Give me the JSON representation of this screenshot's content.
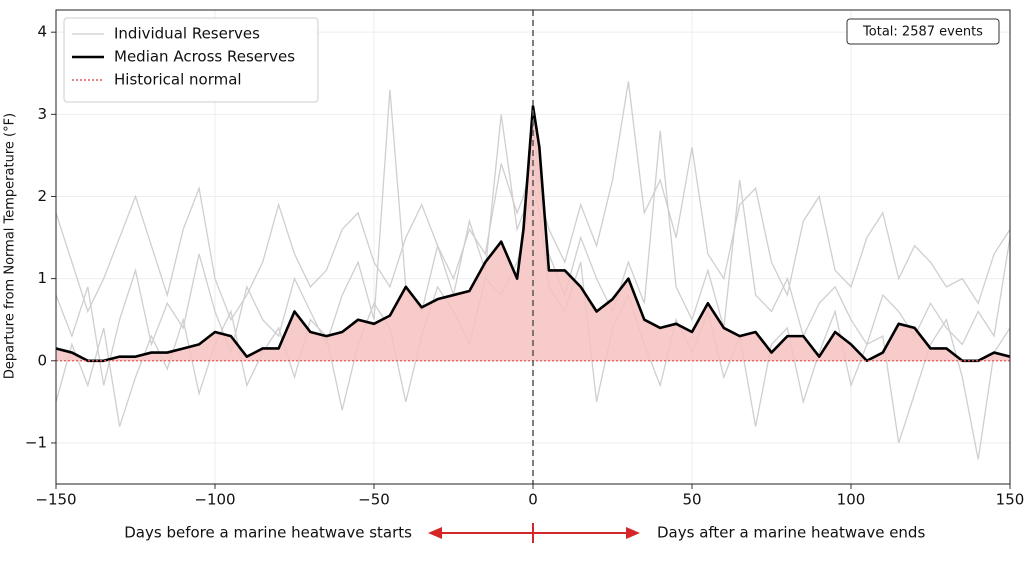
{
  "chart_data": {
    "type": "line",
    "ylabel": "Departure from Normal Temperature (°F)",
    "annotation": "Total: 2587 events",
    "xcaption_left": "Days before a marine heatwave starts",
    "xcaption_right": "Days after a marine heatwave ends",
    "arrow_color": "#d62728",
    "xlim": [
      -150,
      150
    ],
    "ylim": [
      -1.5,
      4.27
    ],
    "xticks": [
      {
        "value": -150,
        "label": "−150"
      },
      {
        "value": -100,
        "label": "−100"
      },
      {
        "value": -50,
        "label": "−50"
      },
      0,
      50,
      100,
      150
    ],
    "yticks": [
      {
        "value": -1,
        "label": "−1"
      },
      0,
      1,
      2,
      3,
      4
    ],
    "grid": true,
    "legend": "upper left",
    "vline": 0,
    "x": [
      -150,
      -145,
      -140,
      -135,
      -130,
      -125,
      -120,
      -115,
      -110,
      -105,
      -100,
      -95,
      -90,
      -85,
      -80,
      -75,
      -70,
      -65,
      -60,
      -55,
      -50,
      -45,
      -40,
      -35,
      -30,
      -25,
      -20,
      -15,
      -10,
      -5,
      -3,
      0,
      2,
      5,
      10,
      15,
      20,
      25,
      30,
      35,
      40,
      45,
      50,
      55,
      60,
      65,
      70,
      75,
      80,
      85,
      90,
      95,
      100,
      105,
      110,
      115,
      120,
      125,
      130,
      135,
      140,
      145,
      150
    ],
    "series": [
      {
        "name": "Individual Reserves",
        "color": "#cfcfcf",
        "values": [
          [
            1.8,
            1.2,
            0.6,
            1.0,
            1.5,
            2.0,
            1.4,
            0.8,
            1.6,
            2.1,
            1.0,
            0.5,
            0.8,
            1.2,
            1.9,
            1.3,
            0.9,
            1.1,
            1.6,
            1.8,
            1.2,
            0.9,
            1.5,
            1.9,
            1.4,
            1.0,
            1.6,
            1.3,
            2.4,
            1.8,
            2.0,
            2.5,
            2.0,
            1.6,
            1.2,
            1.9,
            1.4,
            2.2,
            3.4,
            1.8,
            2.2,
            1.5,
            2.6,
            1.3,
            1.0,
            1.9,
            2.1,
            1.2,
            0.8,
            1.7,
            2.0,
            1.1,
            0.9,
            1.5,
            1.8,
            1.0,
            1.4,
            1.2,
            0.9,
            1.0,
            0.7,
            1.3,
            1.6
          ],
          [
            -0.5,
            0.2,
            -0.3,
            0.4,
            -0.8,
            -0.2,
            0.3,
            -0.1,
            0.5,
            -0.4,
            0.2,
            0.6,
            -0.3,
            0.1,
            0.4,
            -0.2,
            0.5,
            0.3,
            -0.6,
            0.2,
            0.7,
            0.4,
            -0.5,
            0.3,
            0.9,
            0.6,
            0.2,
            1.0,
            0.8,
            1.2,
            1.5,
            2.2,
            1.8,
            0.9,
            0.6,
            1.2,
            -0.5,
            0.4,
            0.8,
            0.2,
            -0.3,
            0.5,
            0.1,
            0.6,
            -0.2,
            0.3,
            -0.8,
            0.2,
            0.4,
            -0.5,
            0.1,
            0.6,
            -0.3,
            0.2,
            0.3,
            -1.0,
            -0.4,
            0.2,
            0.5,
            -0.2,
            -1.2,
            0.1,
            0.4
          ],
          [
            0.8,
            0.3,
            0.9,
            -0.3,
            0.5,
            1.1,
            0.2,
            0.7,
            0.4,
            1.3,
            0.6,
            0.1,
            0.9,
            0.5,
            0.3,
            1.0,
            0.6,
            0.2,
            0.8,
            1.2,
            0.5,
            3.3,
            0.9,
            0.6,
            1.4,
            0.8,
            1.7,
            1.1,
            3.0,
            1.6,
            1.8,
            2.9,
            2.2,
            1.3,
            0.8,
            1.5,
            1.0,
            0.6,
            1.2,
            0.7,
            2.8,
            0.9,
            0.5,
            1.1,
            0.4,
            2.2,
            0.8,
            0.6,
            1.0,
            0.3,
            0.7,
            0.9,
            0.5,
            0.2,
            0.8,
            0.6,
            0.3,
            0.7,
            0.4,
            0.2,
            0.6,
            0.3,
            1.5
          ]
        ]
      },
      {
        "name": "Median Across Reserves",
        "color": "#000000",
        "fill": "#f7c2c2",
        "values": [
          0.15,
          0.1,
          0,
          0,
          0.05,
          0.05,
          0.1,
          0.1,
          0.15,
          0.2,
          0.35,
          0.3,
          0.05,
          0.15,
          0.15,
          0.6,
          0.35,
          0.3,
          0.35,
          0.5,
          0.45,
          0.55,
          0.9,
          0.65,
          0.75,
          0.8,
          0.85,
          1.2,
          1.45,
          1.0,
          1.6,
          3.1,
          2.6,
          1.1,
          1.1,
          0.9,
          0.6,
          0.75,
          1.0,
          0.5,
          0.4,
          0.45,
          0.35,
          0.7,
          0.4,
          0.3,
          0.35,
          0.1,
          0.3,
          0.3,
          0.05,
          0.35,
          0.2,
          0,
          0.1,
          0.45,
          0.4,
          0.15,
          0.15,
          0,
          0,
          0.1,
          0.05
        ]
      },
      {
        "name": "Historical normal",
        "color": "#e05a5a",
        "y": 0
      }
    ]
  }
}
